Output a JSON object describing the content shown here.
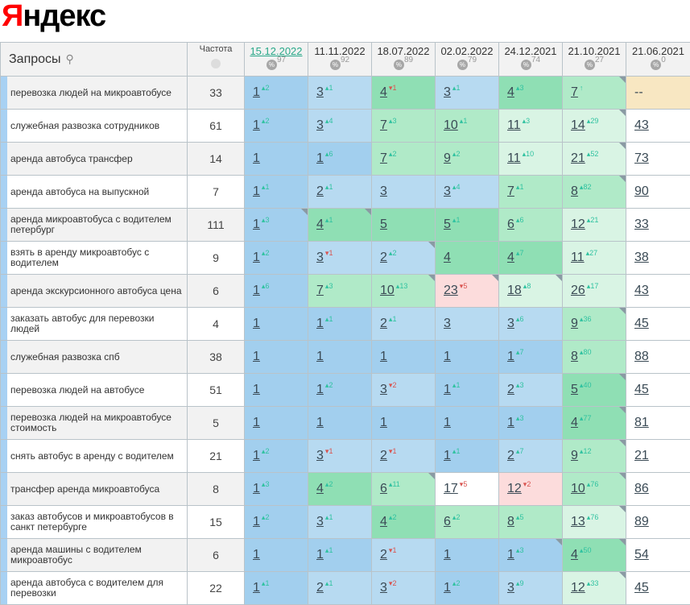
{
  "logo": {
    "text": "Яндекс",
    "first": "Я",
    "rest": "ндекс",
    "color": "#ff0000"
  },
  "header": {
    "query_label": "Запросы",
    "search_icon": "search-icon",
    "freq_label": "Частота",
    "freq_icon": "globe-icon",
    "dates": [
      {
        "date": "15.12.2022",
        "pct": "97",
        "active": true
      },
      {
        "date": "11.11.2022",
        "pct": "92"
      },
      {
        "date": "18.07.2022",
        "pct": "89"
      },
      {
        "date": "02.02.2022",
        "pct": "79"
      },
      {
        "date": "24.12.2021",
        "pct": "74"
      },
      {
        "date": "21.10.2021",
        "pct": "27"
      },
      {
        "date": "21.06.2021",
        "pct": "0"
      }
    ]
  },
  "colors": {
    "rank1": "#a2cfee",
    "rank2_3": "#b7daf1",
    "rank4_5": "#8fdfb4",
    "rank6_10": "#b0eac8",
    "rank11_30": "#d9f4e4",
    "other": "#ffffff",
    "worse": "#fcdcdc",
    "none": "#f8e7c2",
    "up": "#2fc2a0",
    "down": "#d9534f"
  },
  "rows": [
    {
      "q": "перевозка людей на микроавтобусе",
      "f": "33",
      "c": [
        {
          "r": "1",
          "d": "2"
        },
        {
          "r": "3",
          "d": "1"
        },
        {
          "r": "4",
          "d": "1",
          "s": "dn"
        },
        {
          "r": "3",
          "d": "1"
        },
        {
          "r": "4",
          "d": "3"
        },
        {
          "r": "7",
          "d": "↑",
          "m": true
        },
        {
          "r": "--",
          "bg": "none",
          "nolink": true
        }
      ]
    },
    {
      "q": "служебная развозка сотрудников",
      "f": "61",
      "c": [
        {
          "r": "1",
          "d": "2"
        },
        {
          "r": "3",
          "d": "4"
        },
        {
          "r": "7",
          "d": "3"
        },
        {
          "r": "10",
          "d": "1"
        },
        {
          "r": "11",
          "d": "3"
        },
        {
          "r": "14",
          "d": "29",
          "m": true
        },
        {
          "r": "43"
        }
      ]
    },
    {
      "q": "аренда автобуса трансфер",
      "f": "14",
      "c": [
        {
          "r": "1"
        },
        {
          "r": "1",
          "d": "6"
        },
        {
          "r": "7",
          "d": "2"
        },
        {
          "r": "9",
          "d": "2"
        },
        {
          "r": "11",
          "d": "10"
        },
        {
          "r": "21",
          "d": "52",
          "m": true
        },
        {
          "r": "73"
        }
      ]
    },
    {
      "q": "аренда автобуса на выпускной",
      "f": "7",
      "c": [
        {
          "r": "1",
          "d": "1"
        },
        {
          "r": "2",
          "d": "1"
        },
        {
          "r": "3"
        },
        {
          "r": "3",
          "d": "4"
        },
        {
          "r": "7",
          "d": "1"
        },
        {
          "r": "8",
          "d": "82",
          "m": true
        },
        {
          "r": "90"
        }
      ]
    },
    {
      "q": "аренда микроавтобуса с водителем петербург",
      "f": "111",
      "c": [
        {
          "r": "1",
          "d": "3",
          "m": true
        },
        {
          "r": "4",
          "d": "1",
          "m": true
        },
        {
          "r": "5"
        },
        {
          "r": "5",
          "d": "1"
        },
        {
          "r": "6",
          "d": "6"
        },
        {
          "r": "12",
          "d": "21"
        },
        {
          "r": "33"
        }
      ]
    },
    {
      "q": "взять в аренду микроавтобус с водителем",
      "f": "9",
      "c": [
        {
          "r": "1",
          "d": "2"
        },
        {
          "r": "3",
          "d": "1",
          "s": "dn"
        },
        {
          "r": "2",
          "d": "2",
          "m": true
        },
        {
          "r": "4"
        },
        {
          "r": "4",
          "d": "7"
        },
        {
          "r": "11",
          "d": "27"
        },
        {
          "r": "38"
        }
      ]
    },
    {
      "q": "аренда экскурсионного автобуса цена",
      "f": "6",
      "c": [
        {
          "r": "1",
          "d": "6"
        },
        {
          "r": "7",
          "d": "3"
        },
        {
          "r": "10",
          "d": "13",
          "m": true
        },
        {
          "r": "23",
          "d": "5",
          "s": "dn",
          "m": true,
          "bg": "worse"
        },
        {
          "r": "18",
          "d": "8",
          "m": true
        },
        {
          "r": "26",
          "d": "17"
        },
        {
          "r": "43"
        }
      ]
    },
    {
      "q": "заказать автобус для перевозки людей",
      "f": "4",
      "c": [
        {
          "r": "1"
        },
        {
          "r": "1",
          "d": "1"
        },
        {
          "r": "2",
          "d": "1"
        },
        {
          "r": "3"
        },
        {
          "r": "3",
          "d": "6"
        },
        {
          "r": "9",
          "d": "36",
          "m": true
        },
        {
          "r": "45"
        }
      ]
    },
    {
      "q": "служебная развозка спб",
      "f": "38",
      "c": [
        {
          "r": "1"
        },
        {
          "r": "1"
        },
        {
          "r": "1"
        },
        {
          "r": "1"
        },
        {
          "r": "1",
          "d": "7"
        },
        {
          "r": "8",
          "d": "80"
        },
        {
          "r": "88"
        }
      ]
    },
    {
      "q": "перевозка людей на автобусе",
      "f": "51",
      "c": [
        {
          "r": "1"
        },
        {
          "r": "1",
          "d": "2"
        },
        {
          "r": "3",
          "d": "2",
          "s": "dn"
        },
        {
          "r": "1",
          "d": "1"
        },
        {
          "r": "2",
          "d": "3"
        },
        {
          "r": "5",
          "d": "40",
          "m": true
        },
        {
          "r": "45"
        }
      ]
    },
    {
      "q": "перевозка людей на микроавтобусе стоимость",
      "f": "5",
      "c": [
        {
          "r": "1"
        },
        {
          "r": "1"
        },
        {
          "r": "1"
        },
        {
          "r": "1"
        },
        {
          "r": "1",
          "d": "3"
        },
        {
          "r": "4",
          "d": "77",
          "m": true
        },
        {
          "r": "81"
        }
      ]
    },
    {
      "q": "снять автобус в аренду с водителем",
      "f": "21",
      "c": [
        {
          "r": "1",
          "d": "2"
        },
        {
          "r": "3",
          "d": "1",
          "s": "dn"
        },
        {
          "r": "2",
          "d": "1",
          "s": "dn"
        },
        {
          "r": "1",
          "d": "1"
        },
        {
          "r": "2",
          "d": "7"
        },
        {
          "r": "9",
          "d": "12",
          "m": true
        },
        {
          "r": "21"
        }
      ]
    },
    {
      "q": "трансфер аренда микроавтобуса",
      "f": "8",
      "c": [
        {
          "r": "1",
          "d": "3"
        },
        {
          "r": "4",
          "d": "2"
        },
        {
          "r": "6",
          "d": "11",
          "m": true
        },
        {
          "r": "17",
          "d": "5",
          "s": "dn",
          "bg": "other"
        },
        {
          "r": "12",
          "d": "2",
          "s": "dn",
          "bg": "worse"
        },
        {
          "r": "10",
          "d": "76",
          "m": true
        },
        {
          "r": "86"
        }
      ]
    },
    {
      "q": "заказ автобусов и микроавтобусов в санкт петербурге",
      "f": "15",
      "c": [
        {
          "r": "1",
          "d": "2"
        },
        {
          "r": "3",
          "d": "1"
        },
        {
          "r": "4",
          "d": "2"
        },
        {
          "r": "6",
          "d": "2"
        },
        {
          "r": "8",
          "d": "5"
        },
        {
          "r": "13",
          "d": "76",
          "m": true
        },
        {
          "r": "89"
        }
      ]
    },
    {
      "q": "аренда машины с водителем микроавтобус",
      "f": "6",
      "c": [
        {
          "r": "1"
        },
        {
          "r": "1",
          "d": "1"
        },
        {
          "r": "2",
          "d": "1",
          "s": "dn"
        },
        {
          "r": "1"
        },
        {
          "r": "1",
          "d": "3",
          "m": true
        },
        {
          "r": "4",
          "d": "50",
          "m": true
        },
        {
          "r": "54"
        }
      ]
    },
    {
      "q": "аренда автобуса с водителем для перевозки",
      "f": "22",
      "c": [
        {
          "r": "1",
          "d": "1"
        },
        {
          "r": "2",
          "d": "1"
        },
        {
          "r": "3",
          "d": "2",
          "s": "dn"
        },
        {
          "r": "1",
          "d": "2"
        },
        {
          "r": "3",
          "d": "9"
        },
        {
          "r": "12",
          "d": "33",
          "m": true
        },
        {
          "r": "45"
        }
      ]
    }
  ]
}
